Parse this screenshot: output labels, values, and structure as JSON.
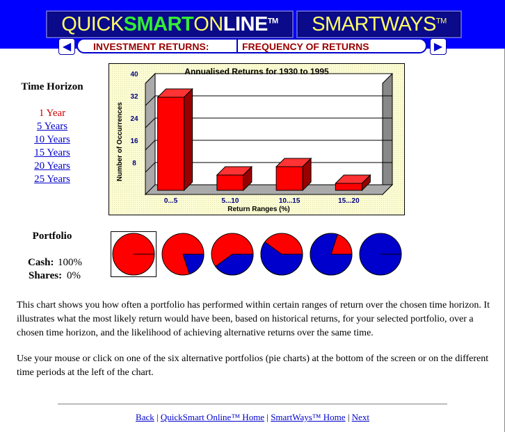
{
  "header": {
    "logo_quick": "QUICK",
    "logo_smart": "SMART",
    "logo_on": "ON",
    "logo_line": "LINE",
    "logo_tm": "TM",
    "smartways": "SMARTWAYS",
    "smartways_tm": "TM"
  },
  "nav": {
    "left_label": "INVESTMENT RETURNS:",
    "right_label": "FREQUENCY OF RETURNS",
    "prev_icon": "left-arrow-icon",
    "next_icon": "right-arrow-icon"
  },
  "time_horizon": {
    "heading": "Time Horizon",
    "items": [
      "1 Year",
      "5 Years",
      "10 Years",
      "15 Years",
      "20 Years",
      "25 Years"
    ],
    "selected": 0
  },
  "portfolio": {
    "heading": "Portfolio",
    "cash_label": "Cash:",
    "cash_value": "100%",
    "shares_label": "Shares:",
    "shares_value": "0%",
    "pie_shares": [
      0,
      20,
      40,
      60,
      80,
      100
    ],
    "selected": 0,
    "colors": {
      "cash": "#ff0000",
      "shares": "#0000cc"
    }
  },
  "chart_data": {
    "type": "bar",
    "title": "Annualised Returns for 1930 to 1995",
    "xlabel": "Return Ranges (%)",
    "ylabel": "Number of Occurrences",
    "categories": [
      "0...5",
      "5...10",
      "10...15",
      "15...20"
    ],
    "values": [
      35,
      7,
      10,
      4
    ],
    "yticks": [
      8,
      16,
      24,
      32,
      40
    ],
    "ylim": [
      0,
      40
    ],
    "grid": true,
    "bar_color": "#ff0000"
  },
  "description": {
    "p1": "This chart shows you how often a portfolio has performed within certain ranges of return over the chosen time horizon. It illustrates what the most likely return would have been, based on historical returns, for your selected portfolio, over a chosen time horizon, and the likelihood of achieving alternative returns over the same time.",
    "p2": "Use your mouse or click on one of the six alternative portfolios (pie charts) at the bottom of the screen or on the different time periods at the left of the chart."
  },
  "footer": {
    "back": "Back",
    "qs_home": "QuickSmart Online™ Home",
    "sw_home": "SmartWays™ Home",
    "next": "Next",
    "sep": "|"
  }
}
